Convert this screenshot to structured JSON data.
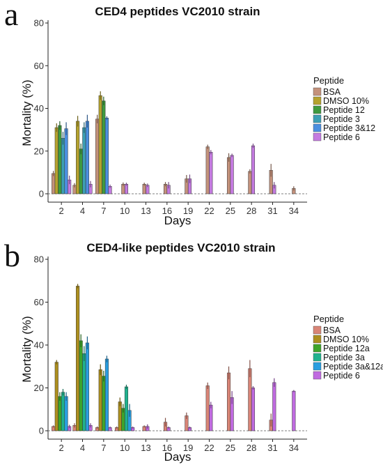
{
  "chart_data": [
    {
      "type": "bar",
      "panel_label": "a",
      "title": "CED4 peptides VC2010 strain",
      "xlabel": "Days",
      "ylabel": "Mortality (%)",
      "ylim": [
        0,
        80
      ],
      "yticks": [
        0,
        20,
        40,
        60,
        80
      ],
      "categories": [
        "2",
        "4",
        "7",
        "10",
        "13",
        "16",
        "19",
        "22",
        "25",
        "28",
        "31",
        "34"
      ],
      "legend_title": "Peptide",
      "legend_position": "right",
      "grid": false,
      "reference_line": 0,
      "series": [
        {
          "name": "BSA",
          "color": "#c4927c",
          "values": [
            9.5,
            4.0,
            35.0,
            4.5,
            4.5,
            4.5,
            7.0,
            22.0,
            17.0,
            10.5,
            11.0,
            2.5
          ],
          "errors": [
            1.2,
            1.0,
            2.0,
            0.8,
            0.7,
            1.0,
            1.8,
            1.0,
            2.0,
            1.0,
            3.0,
            1.0
          ]
        },
        {
          "name": "DMSO 10%",
          "color": "#b5a22e",
          "values": [
            31.0,
            34.0,
            46.0,
            null,
            null,
            null,
            null,
            null,
            null,
            null,
            null,
            null
          ],
          "errors": [
            2.0,
            2.5,
            2.0,
            null,
            null,
            null,
            null,
            null,
            null,
            null,
            null,
            null
          ]
        },
        {
          "name": "Peptide 12",
          "color": "#3f9a3f",
          "values": [
            32.0,
            21.0,
            43.5,
            null,
            null,
            null,
            null,
            null,
            null,
            null,
            null,
            null
          ],
          "errors": [
            2.0,
            2.5,
            2.0,
            null,
            null,
            null,
            null,
            null,
            null,
            null,
            null,
            null
          ]
        },
        {
          "name": "Peptide 3",
          "color": "#3d9fb4",
          "values": [
            26.0,
            31.0,
            null,
            null,
            null,
            null,
            null,
            null,
            null,
            null,
            null,
            null
          ],
          "errors": [
            3.0,
            2.5,
            null,
            null,
            null,
            null,
            null,
            null,
            null,
            null,
            null,
            null
          ]
        },
        {
          "name": "Peptide 3&12",
          "color": "#4b8fe0",
          "values": [
            30.5,
            34.0,
            35.5,
            null,
            null,
            null,
            null,
            null,
            null,
            null,
            null,
            null
          ],
          "errors": [
            3.0,
            3.0,
            0.8,
            null,
            null,
            null,
            null,
            null,
            null,
            null,
            null,
            null
          ]
        },
        {
          "name": "Peptide 6",
          "color": "#c47be0",
          "values": [
            6.5,
            4.5,
            3.5,
            4.5,
            4.0,
            4.0,
            7.0,
            19.5,
            18.0,
            22.5,
            4.0,
            null
          ],
          "errors": [
            2.0,
            1.5,
            0.8,
            0.7,
            0.8,
            1.5,
            2.0,
            1.0,
            0.8,
            1.0,
            1.5,
            null
          ]
        }
      ]
    },
    {
      "type": "bar",
      "panel_label": "b",
      "title": "CED4-like peptides VC2010 strain",
      "xlabel": "Days",
      "ylabel": "Mortality (%)",
      "ylim": [
        0,
        80
      ],
      "yticks": [
        0,
        20,
        40,
        60,
        80
      ],
      "categories": [
        "2",
        "4",
        "7",
        "10",
        "13",
        "16",
        "19",
        "22",
        "25",
        "28",
        "31",
        "34"
      ],
      "legend_title": "Peptide",
      "legend_position": "right",
      "grid": false,
      "reference_line": 0,
      "series": [
        {
          "name": "BSA",
          "color": "#d98577",
          "values": [
            2.0,
            2.5,
            1.5,
            1.5,
            2.0,
            4.0,
            7.0,
            21.0,
            27.0,
            29.0,
            5.0,
            null
          ],
          "errors": [
            0.5,
            1.0,
            0.5,
            0.5,
            0.5,
            2.0,
            1.5,
            1.5,
            3.0,
            4.0,
            3.0,
            null
          ]
        },
        {
          "name": "DMSO 10%",
          "color": "#ad8f1f",
          "values": [
            32.0,
            67.5,
            28.5,
            13.5,
            null,
            null,
            null,
            null,
            null,
            null,
            null,
            null
          ],
          "errors": [
            1.0,
            1.0,
            2.5,
            2.0,
            null,
            null,
            null,
            null,
            null,
            null,
            null,
            null
          ]
        },
        {
          "name": "Peptide 12a",
          "color": "#3ea52b",
          "values": [
            16.0,
            42.0,
            25.5,
            10.5,
            null,
            null,
            null,
            null,
            null,
            null,
            null,
            null
          ],
          "errors": [
            2.0,
            3.0,
            2.5,
            2.0,
            null,
            null,
            null,
            null,
            null,
            null,
            null,
            null
          ]
        },
        {
          "name": "Peptide 3a",
          "color": "#20b28e",
          "values": [
            18.0,
            36.0,
            null,
            20.5,
            null,
            null,
            null,
            null,
            null,
            null,
            null,
            null
          ],
          "errors": [
            1.5,
            3.5,
            null,
            1.0,
            null,
            null,
            null,
            null,
            null,
            null,
            null,
            null
          ]
        },
        {
          "name": "Peptide 3a&12a",
          "color": "#2a9ee0",
          "values": [
            16.0,
            41.0,
            33.5,
            9.5,
            null,
            null,
            null,
            null,
            null,
            null,
            null,
            null
          ],
          "errors": [
            2.0,
            3.0,
            1.5,
            3.0,
            null,
            null,
            null,
            null,
            null,
            null,
            null,
            null
          ]
        },
        {
          "name": "Peptide 6",
          "color": "#c06be0",
          "values": [
            2.0,
            2.5,
            1.5,
            1.5,
            2.0,
            1.5,
            1.5,
            12.0,
            15.5,
            20.0,
            22.5,
            18.5
          ],
          "errors": [
            0.8,
            1.0,
            0.5,
            0.5,
            1.0,
            0.5,
            0.5,
            1.5,
            3.0,
            0.8,
            2.0,
            0.5
          ]
        }
      ]
    }
  ]
}
